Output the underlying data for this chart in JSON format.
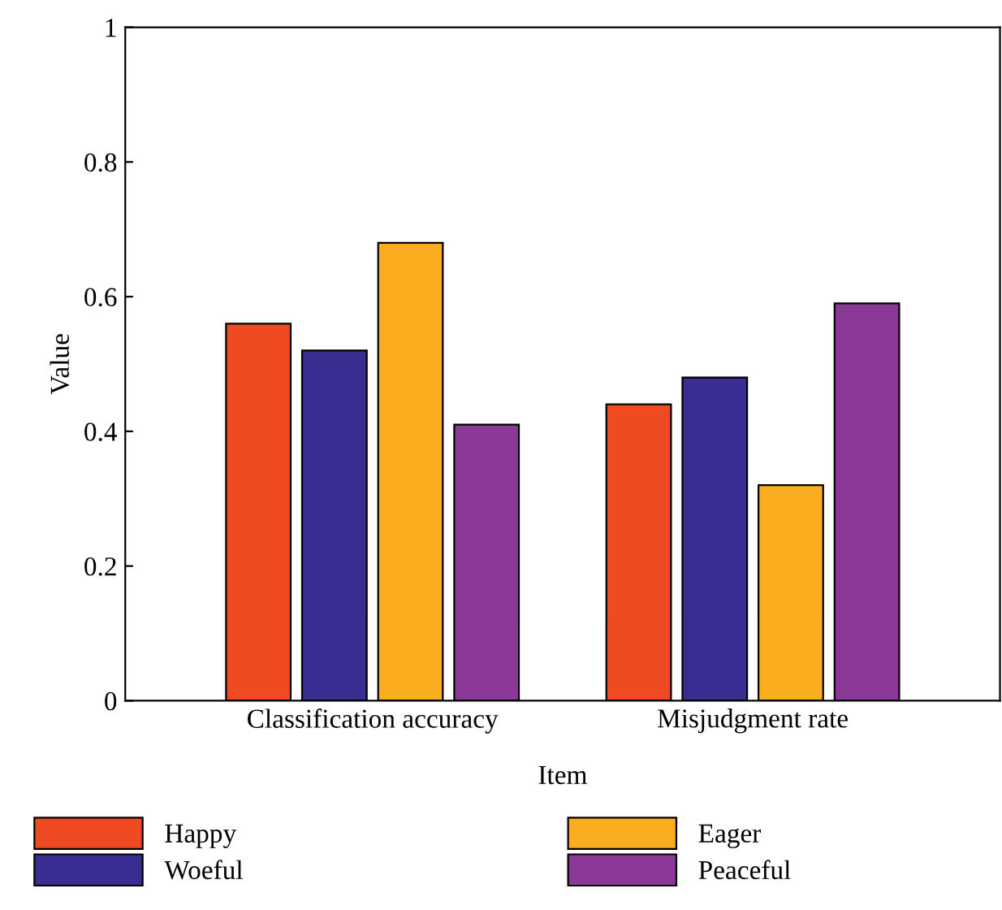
{
  "chart_data": {
    "type": "bar",
    "xlabel": "Item",
    "ylabel": "Value",
    "categories": [
      "Classification accuracy",
      "Misjudgment rate"
    ],
    "series": [
      {
        "name": "Happy",
        "color": "#f04a23",
        "values": [
          0.56,
          0.44
        ]
      },
      {
        "name": "Woeful",
        "color": "#3a2d91",
        "values": [
          0.52,
          0.48
        ]
      },
      {
        "name": "Eager",
        "color": "#f9ad1f",
        "values": [
          0.68,
          0.32
        ]
      },
      {
        "name": "Peaceful",
        "color": "#8a3a96",
        "values": [
          0.41,
          0.59
        ]
      }
    ],
    "ylim": [
      0,
      1
    ],
    "yticks": [
      0,
      0.2,
      0.4,
      0.6,
      0.8,
      1
    ],
    "grid": false,
    "legend": "bottom"
  }
}
